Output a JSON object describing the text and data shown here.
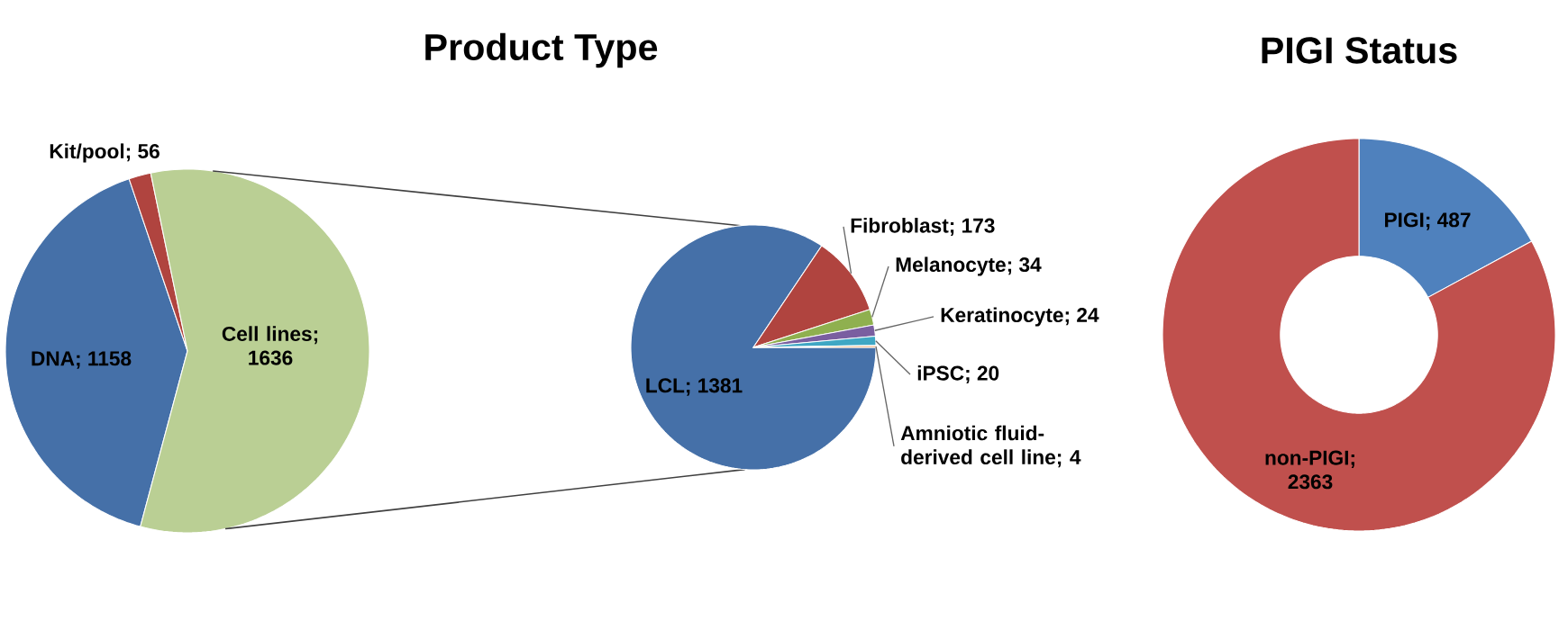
{
  "chart_data": [
    {
      "type": "pie",
      "title": "Product Type",
      "categories": [
        "DNA",
        "Kit/pool",
        "Cell lines"
      ],
      "values": [
        1158,
        56,
        1636
      ],
      "value_labels": [
        "; 1158",
        "; 56",
        "; 1636"
      ],
      "colors": [
        "#4570A8",
        "#B0443F",
        "#BACF94"
      ]
    },
    {
      "type": "pie",
      "categories": [
        "LCL",
        "Fibroblast",
        "Melanocyte",
        "Keratinocyte",
        "iPSC",
        "Amniotic fluid-derived cell line"
      ],
      "values": [
        1381,
        173,
        34,
        24,
        20,
        4
      ],
      "value_labels": [
        "; 1381",
        "; 173",
        "; 34",
        "; 24",
        "; 20",
        "; 4"
      ],
      "colors": [
        "#4570A8",
        "#B0443F",
        "#8FB04F",
        "#7A5FA0",
        "#3FA7C4",
        "#F09140"
      ]
    },
    {
      "type": "donut",
      "title": "PIGI Status",
      "categories": [
        "PIGI",
        "non-PIGI"
      ],
      "values": [
        487,
        2363
      ],
      "value_labels": [
        "; 487",
        "; 2363"
      ],
      "colors": [
        "#4F81BD",
        "#C0504D"
      ]
    }
  ]
}
